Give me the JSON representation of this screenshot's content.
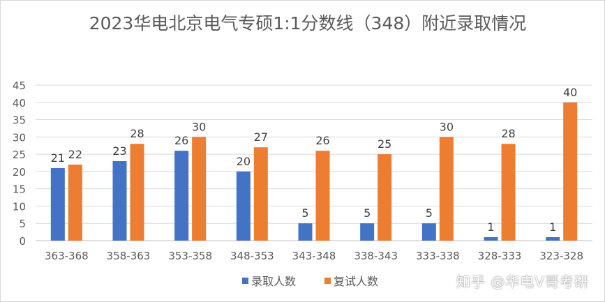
{
  "chart_data": {
    "type": "bar",
    "title": "2023华电北京电气专硕1:1分数线（348）附近录取情况",
    "categories": [
      "363-368",
      "358-363",
      "353-358",
      "348-353",
      "343-348",
      "338-343",
      "333-338",
      "328-333",
      "323-328"
    ],
    "series": [
      {
        "name": "录取人数",
        "color": "#4472c4",
        "values": [
          21,
          23,
          26,
          20,
          5,
          5,
          5,
          1,
          1
        ]
      },
      {
        "name": "复试人数",
        "color": "#ed7d31",
        "values": [
          22,
          28,
          30,
          27,
          26,
          25,
          30,
          28,
          40
        ]
      }
    ],
    "ylim": [
      0,
      45
    ],
    "yticks": [
      0,
      5,
      10,
      15,
      20,
      25,
      30,
      35,
      40,
      45
    ],
    "grid": true,
    "legend_position": "bottom"
  },
  "watermark": "知乎 @华电V哥考研"
}
